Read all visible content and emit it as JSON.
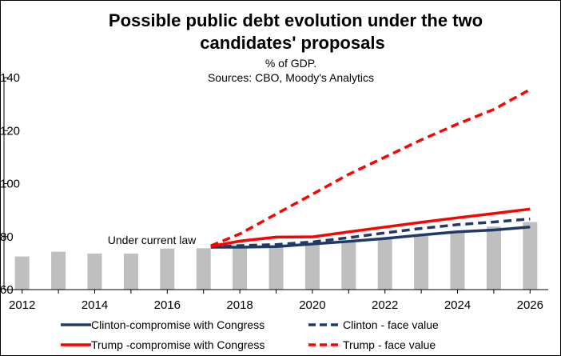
{
  "chart_data": {
    "type": "bar+line",
    "title_line1": "Possible public debt evolution under the two",
    "title_line2": "candidates' proposals",
    "subtitle_line1": "% of GDP.",
    "subtitle_line2": "Sources: CBO, Moody's Analytics",
    "ylim": [
      60,
      140
    ],
    "yticks": [
      "60",
      "80",
      "100",
      "120",
      "140"
    ],
    "xticks": [
      "2012",
      "2014",
      "2016",
      "2018",
      "2020",
      "2022",
      "2024",
      "2026"
    ],
    "grid": false,
    "bar_label": "Under current law",
    "bars": {
      "x": [
        2012,
        2013,
        2014,
        2015,
        2016,
        2017,
        2018,
        2019,
        2020,
        2021,
        2022,
        2023,
        2024,
        2025,
        2026
      ],
      "values": [
        72.5,
        74.3,
        73.6,
        73.6,
        75.5,
        75.6,
        76.0,
        76.3,
        76.9,
        78.1,
        79.3,
        80.2,
        82.0,
        83.8,
        85.5
      ],
      "color": "#bfbfbf"
    },
    "series": [
      {
        "name": "Clinton-compromise with Congress",
        "color": "#1f3a68",
        "dash": false,
        "x": [
          2017.2,
          2018,
          2019,
          2020,
          2021,
          2022,
          2023,
          2024,
          2025,
          2026
        ],
        "values": [
          76.0,
          76.0,
          76.2,
          77.2,
          78.2,
          79.3,
          80.6,
          81.8,
          82.5,
          83.6
        ]
      },
      {
        "name": "Clinton - face value",
        "color": "#1f3a68",
        "dash": true,
        "x": [
          2017.2,
          2018,
          2019,
          2020,
          2021,
          2022,
          2023,
          2024,
          2025,
          2026
        ],
        "values": [
          76.0,
          76.6,
          77.0,
          78.0,
          79.6,
          81.4,
          83.1,
          84.5,
          85.5,
          86.7
        ]
      },
      {
        "name": "Trump -compromise with Congress",
        "color": "#ff0000",
        "dash": false,
        "x": [
          2017.2,
          2018,
          2019,
          2020,
          2021,
          2022,
          2023,
          2024,
          2025,
          2026
        ],
        "values": [
          76.3,
          78.3,
          79.8,
          79.9,
          81.8,
          83.6,
          85.4,
          87.1,
          88.7,
          90.4
        ]
      },
      {
        "name": "Trump - face value",
        "color": "#ff0000",
        "dash": true,
        "x": [
          2017.2,
          2018,
          2019,
          2020,
          2021,
          2022,
          2023,
          2024,
          2025,
          2026
        ],
        "values": [
          76.5,
          81.0,
          88.5,
          96.0,
          103.5,
          110.0,
          116.5,
          122.5,
          128.0,
          135.5
        ]
      }
    ]
  }
}
